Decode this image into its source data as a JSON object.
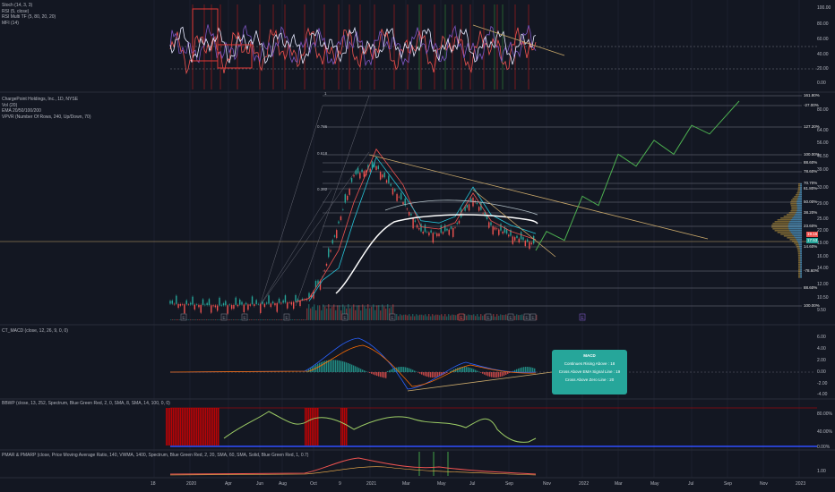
{
  "colors": {
    "background": "#131722",
    "grid": "#242938",
    "candle_up": "#26a69a",
    "candle_down": "#ef5350",
    "ema_white": "#ffffff",
    "ema_teal": "#26c6da",
    "ema_gray": "#d1d4dc",
    "trendline": "#c9a86a",
    "projection": "#4caf50",
    "volume_profile": "#c8a040",
    "stoch": "#7e57c2",
    "rsi": "#e8eaff",
    "mfi": "#ef5350"
  },
  "panes": {
    "stoch": {
      "legend": [
        "Stoch (14, 3, 3)",
        "RSI (5, close)",
        "RSI Multi TF (5, 80, 20, 20)",
        "MFI (14)"
      ],
      "axis_ticks": [
        "100.00",
        "80.00",
        "60.00",
        "40.00",
        "20.00",
        "0.00"
      ]
    },
    "main": {
      "legend": [
        "ChargePoint Holdings, Inc., 1D, NYSE",
        "Vol (20)",
        "EMA 20/50/100/200",
        "VPVR (Number Of Rows, 240, Up/Down, 70)"
      ],
      "fib_labels": [
        "1",
        "0.786",
        "0.618",
        "0.382"
      ],
      "fib_pcts": [
        "161.80%",
        "-27.00%",
        "127.20%",
        "100.00%",
        "88.60%",
        "78.60%",
        "70.70%",
        "61.80%",
        "50.00%",
        "38.20%",
        "23.60%",
        "14.60%",
        "-78.60%",
        "88.60%",
        "100.00%"
      ],
      "axis_ticks": [
        "80.00",
        "64.00",
        "56.00",
        "46.50",
        "39.00",
        "33.00",
        "29.00",
        "25.00",
        "22.00",
        "19.00",
        "16.00",
        "14.00",
        "12.00",
        "10.50",
        "9.50"
      ],
      "price_tags": [
        "19.16",
        "17.53"
      ],
      "event_markers": [
        "E",
        "E",
        "E",
        "E",
        "E",
        "E",
        "E",
        "E",
        "E",
        "E",
        "E",
        "E"
      ]
    },
    "macd": {
      "legend": "CT_MACD (close, 12, 26, 9, 0, 0)",
      "axis_ticks": [
        "6.00",
        "4.00",
        "2.00",
        "0.00",
        "-2.00",
        "-4.00"
      ],
      "box_title": "MACD",
      "box_lines": [
        "Continues Rising Above : 18",
        "Cross Above EMA Signal Line : 19",
        "Cross Above Zero Line : 20"
      ]
    },
    "bbwp": {
      "legend": "BBWP (close, 13, 252, Spectrum, Blue Green Red, 2, 0, SMA, 8, SMA, 14, 100, 0, 0)",
      "axis_ticks": [
        "80.00%",
        "40.00%",
        "0.00%"
      ]
    },
    "pmar": {
      "legend": "PMAR & PMARP (close, Price Moving Average Ratio, 140, VWMA, 1400, Spectrum, Blue Green Red, 2, 20, SMA, 60, SMA, Solid, Blue Green Red, 1, 0.7)",
      "axis_ticks": [
        "1.00"
      ]
    }
  },
  "time_axis": [
    "18",
    "2020",
    "Apr",
    "Jun",
    "Aug",
    "Oct",
    "9",
    "2021",
    "Mar",
    "May",
    "Jul",
    "Sep",
    "Nov",
    "2022",
    "Mar",
    "May",
    "Jul",
    "Sep",
    "Nov",
    "2023"
  ],
  "chart_data": {
    "type": "line",
    "title": "ChargePoint Holdings, Inc., 1D, NYSE",
    "x": [
      "2019-11",
      "2020-01",
      "2020-03",
      "2020-05",
      "2020-07",
      "2020-09",
      "2020-10",
      "2020-11",
      "2020-12",
      "2021-01",
      "2021-02",
      "2021-03",
      "2021-04",
      "2021-05",
      "2021-06",
      "2021-07",
      "2021-08",
      "2021-09",
      "2021-10"
    ],
    "series": [
      {
        "values": [
          10.2,
          10.1,
          10.0,
          10.1,
          10.2,
          10.4,
          10.8,
          13.5,
          24.0,
          40.0,
          44.0,
          30.0,
          22.0,
          21.5,
          23.0,
          31.5,
          23.5,
          21.0,
          19.2
        ]
      }
    ],
    "projection": [
      {
        "x": "2021-11",
        "y": 22.0
      },
      {
        "x": "2021-12",
        "y": 20.0
      },
      {
        "x": "2022-01",
        "y": 32.0
      },
      {
        "x": "2022-02",
        "y": 29.0
      },
      {
        "x": "2022-03",
        "y": 50.0
      },
      {
        "x": "2022-04",
        "y": 44.0
      },
      {
        "x": "2022-05",
        "y": 58.0
      },
      {
        "x": "2022-06",
        "y": 50.0
      },
      {
        "x": "2022-07",
        "y": 68.0
      },
      {
        "x": "2022-08",
        "y": 62.0
      },
      {
        "x": "2022-09",
        "y": 88.0
      }
    ],
    "ylabel": "",
    "xlabel": "",
    "log_scale": true,
    "grid": true
  }
}
